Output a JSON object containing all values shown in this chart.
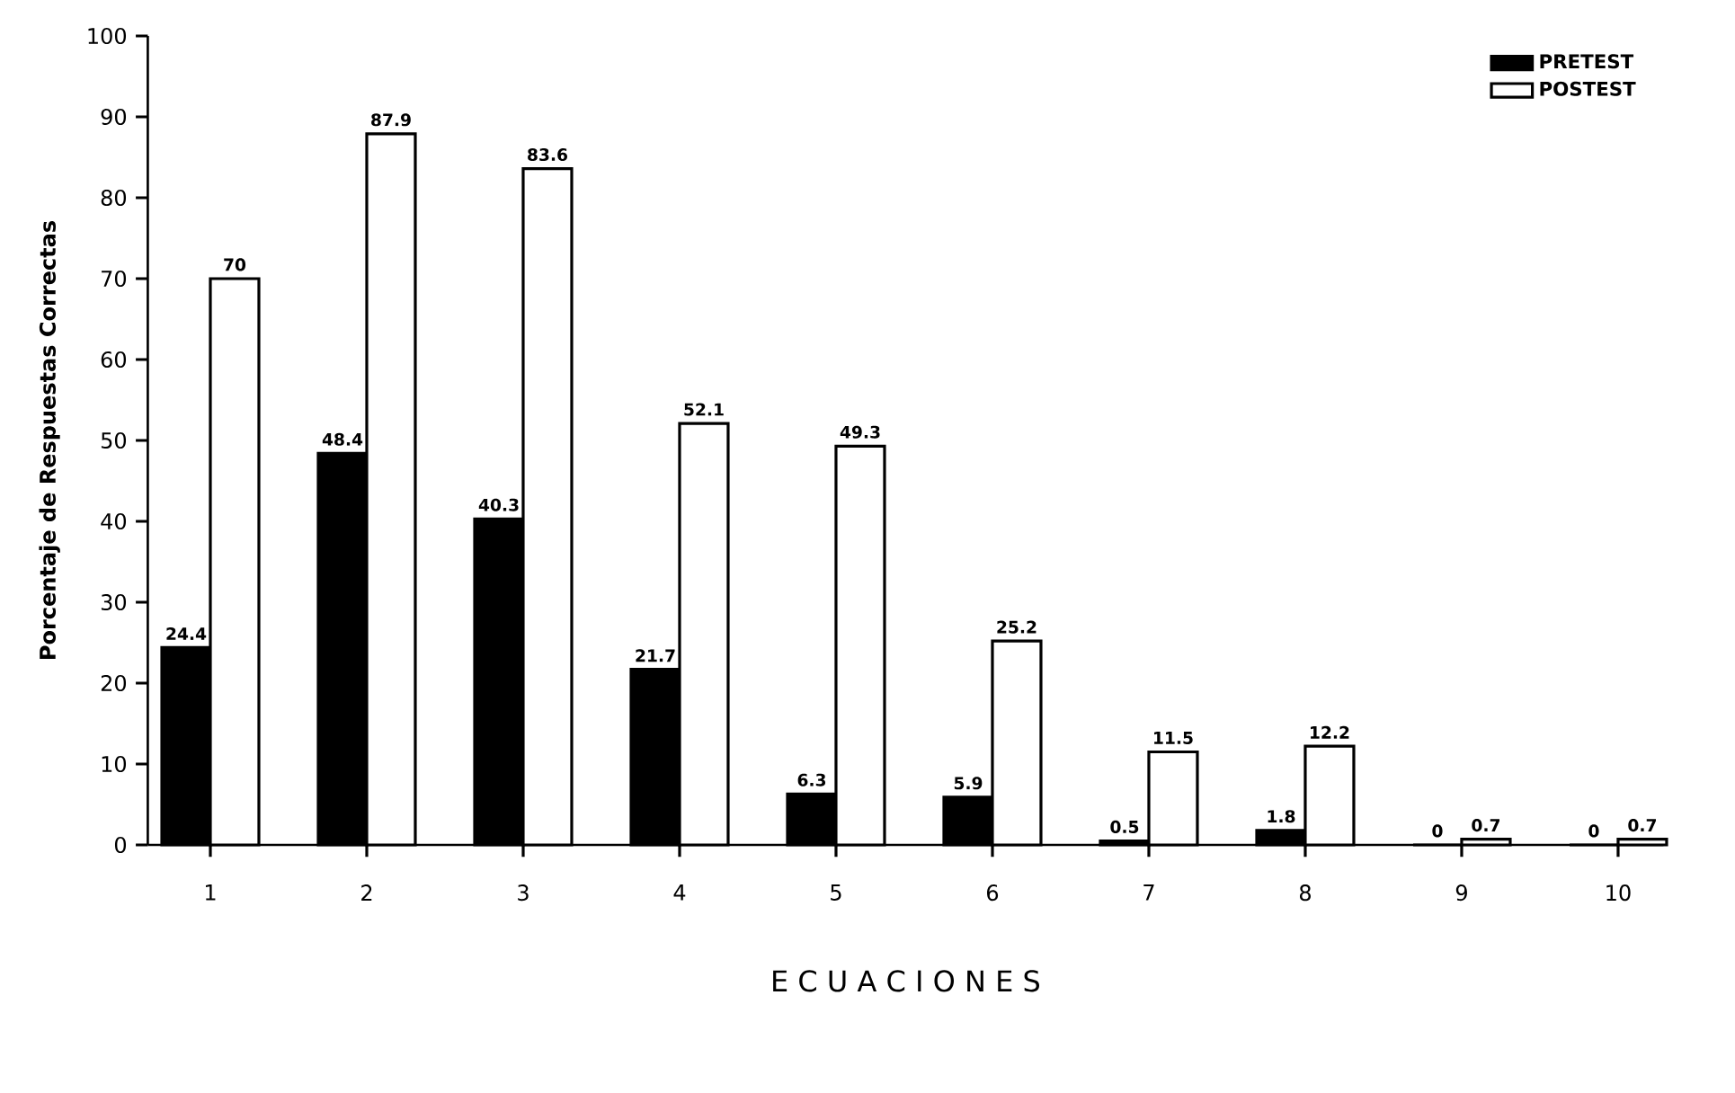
{
  "chart_data": {
    "type": "bar",
    "xlabel": "E C U A C I O N E S",
    "ylabel": "Porcentaje de Respuestas Correctas",
    "categories": [
      "1",
      "2",
      "3",
      "4",
      "5",
      "6",
      "7",
      "8",
      "9",
      "10"
    ],
    "series": [
      {
        "name": "PRETEST",
        "color": "#000000",
        "values": [
          24.4,
          48.4,
          40.3,
          21.7,
          6.3,
          5.9,
          0.5,
          1.8,
          0,
          0
        ]
      },
      {
        "name": "POSTEST",
        "color": "#ffffff",
        "values": [
          70,
          87.9,
          83.6,
          52.1,
          49.3,
          25.2,
          11.5,
          12.2,
          0.7,
          0.7
        ]
      }
    ],
    "ylim": [
      0,
      100
    ],
    "yticks": [
      0,
      10,
      20,
      30,
      40,
      50,
      60,
      70,
      80,
      90,
      100
    ],
    "data_labels": true,
    "legend": "top right",
    "grid": false
  }
}
